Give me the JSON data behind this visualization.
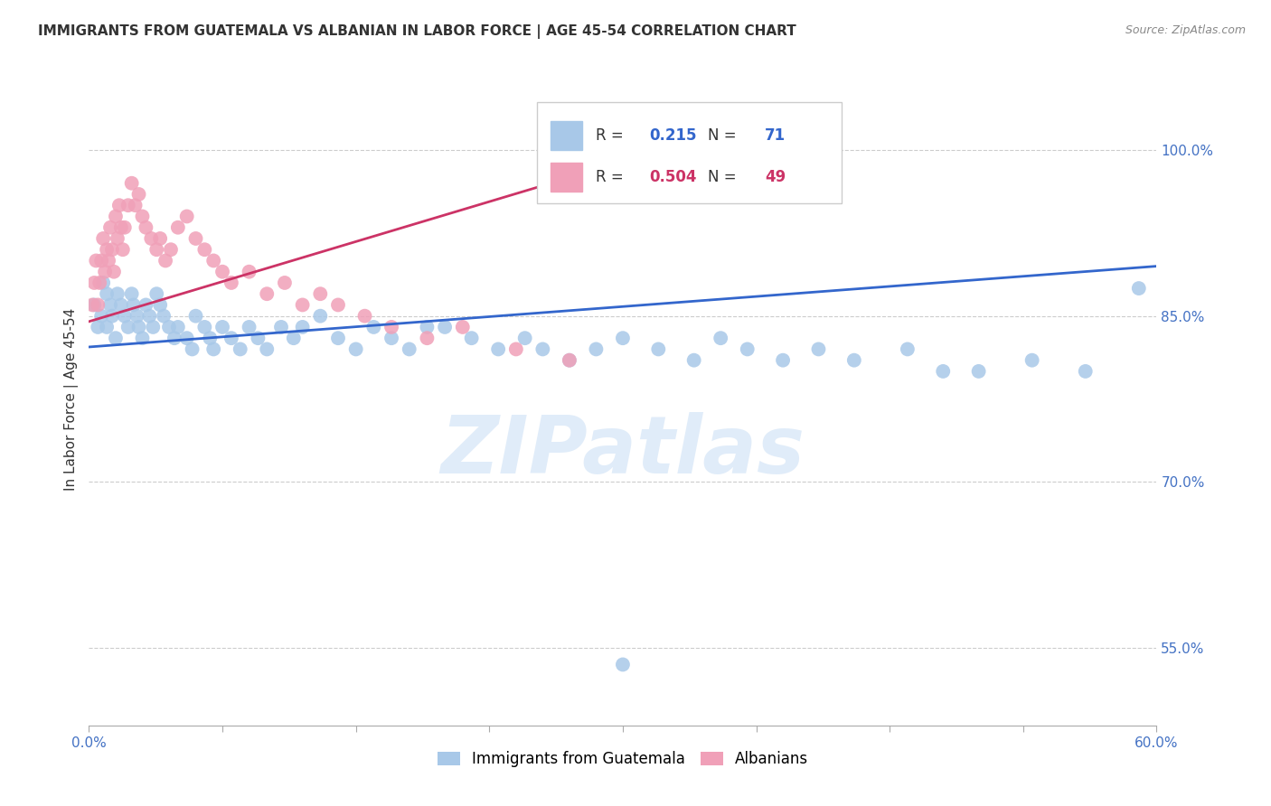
{
  "title": "IMMIGRANTS FROM GUATEMALA VS ALBANIAN IN LABOR FORCE | AGE 45-54 CORRELATION CHART",
  "source": "Source: ZipAtlas.com",
  "ylabel": "In Labor Force | Age 45-54",
  "xlim": [
    0.0,
    0.6
  ],
  "ylim": [
    0.48,
    1.07
  ],
  "xticks": [
    0.0,
    0.075,
    0.15,
    0.225,
    0.3,
    0.375,
    0.45,
    0.525,
    0.6
  ],
  "xticklabels_show": [
    "0.0%",
    "60.0%"
  ],
  "xticklabels_pos": [
    0.0,
    0.6
  ],
  "yticks": [
    0.55,
    0.7,
    0.85,
    1.0
  ],
  "yticklabels": [
    "55.0%",
    "70.0%",
    "85.0%",
    "100.0%"
  ],
  "blue_color": "#a8c8e8",
  "pink_color": "#f0a0b8",
  "blue_line_color": "#3366cc",
  "pink_line_color": "#cc3366",
  "watermark_text": "ZIPatlas",
  "guatemala_x": [
    0.003,
    0.005,
    0.007,
    0.008,
    0.01,
    0.01,
    0.012,
    0.013,
    0.015,
    0.016,
    0.018,
    0.02,
    0.022,
    0.024,
    0.025,
    0.027,
    0.028,
    0.03,
    0.032,
    0.034,
    0.036,
    0.038,
    0.04,
    0.042,
    0.045,
    0.048,
    0.05,
    0.055,
    0.058,
    0.06,
    0.065,
    0.068,
    0.07,
    0.075,
    0.08,
    0.085,
    0.09,
    0.095,
    0.1,
    0.108,
    0.115,
    0.12,
    0.13,
    0.14,
    0.15,
    0.16,
    0.17,
    0.18,
    0.19,
    0.2,
    0.215,
    0.23,
    0.245,
    0.255,
    0.27,
    0.285,
    0.3,
    0.32,
    0.34,
    0.355,
    0.37,
    0.39,
    0.41,
    0.43,
    0.46,
    0.48,
    0.5,
    0.53,
    0.56,
    0.59,
    0.3
  ],
  "guatemala_y": [
    0.86,
    0.84,
    0.85,
    0.88,
    0.84,
    0.87,
    0.86,
    0.85,
    0.83,
    0.87,
    0.86,
    0.85,
    0.84,
    0.87,
    0.86,
    0.85,
    0.84,
    0.83,
    0.86,
    0.85,
    0.84,
    0.87,
    0.86,
    0.85,
    0.84,
    0.83,
    0.84,
    0.83,
    0.82,
    0.85,
    0.84,
    0.83,
    0.82,
    0.84,
    0.83,
    0.82,
    0.84,
    0.83,
    0.82,
    0.84,
    0.83,
    0.84,
    0.85,
    0.83,
    0.82,
    0.84,
    0.83,
    0.82,
    0.84,
    0.84,
    0.83,
    0.82,
    0.83,
    0.82,
    0.81,
    0.82,
    0.83,
    0.82,
    0.81,
    0.83,
    0.82,
    0.81,
    0.82,
    0.81,
    0.82,
    0.8,
    0.8,
    0.81,
    0.8,
    0.875,
    0.535
  ],
  "albania_x": [
    0.002,
    0.003,
    0.004,
    0.005,
    0.006,
    0.007,
    0.008,
    0.009,
    0.01,
    0.011,
    0.012,
    0.013,
    0.014,
    0.015,
    0.016,
    0.017,
    0.018,
    0.019,
    0.02,
    0.022,
    0.024,
    0.026,
    0.028,
    0.03,
    0.032,
    0.035,
    0.038,
    0.04,
    0.043,
    0.046,
    0.05,
    0.055,
    0.06,
    0.065,
    0.07,
    0.075,
    0.08,
    0.09,
    0.1,
    0.11,
    0.12,
    0.13,
    0.14,
    0.155,
    0.17,
    0.19,
    0.21,
    0.24,
    0.27
  ],
  "albania_y": [
    0.86,
    0.88,
    0.9,
    0.86,
    0.88,
    0.9,
    0.92,
    0.89,
    0.91,
    0.9,
    0.93,
    0.91,
    0.89,
    0.94,
    0.92,
    0.95,
    0.93,
    0.91,
    0.93,
    0.95,
    0.97,
    0.95,
    0.96,
    0.94,
    0.93,
    0.92,
    0.91,
    0.92,
    0.9,
    0.91,
    0.93,
    0.94,
    0.92,
    0.91,
    0.9,
    0.89,
    0.88,
    0.89,
    0.87,
    0.88,
    0.86,
    0.87,
    0.86,
    0.85,
    0.84,
    0.83,
    0.84,
    0.82,
    0.81
  ],
  "blue_line_x0": 0.0,
  "blue_line_x1": 0.6,
  "blue_line_y0": 0.822,
  "blue_line_y1": 0.895,
  "pink_line_x0": 0.0,
  "pink_line_x1": 0.27,
  "pink_line_y0": 0.845,
  "pink_line_y1": 0.975,
  "legend_blue_r": "0.215",
  "legend_blue_n": "71",
  "legend_pink_r": "0.504",
  "legend_pink_n": "49",
  "bottom_legend_blue": "Immigrants from Guatemala",
  "bottom_legend_pink": "Albanians"
}
